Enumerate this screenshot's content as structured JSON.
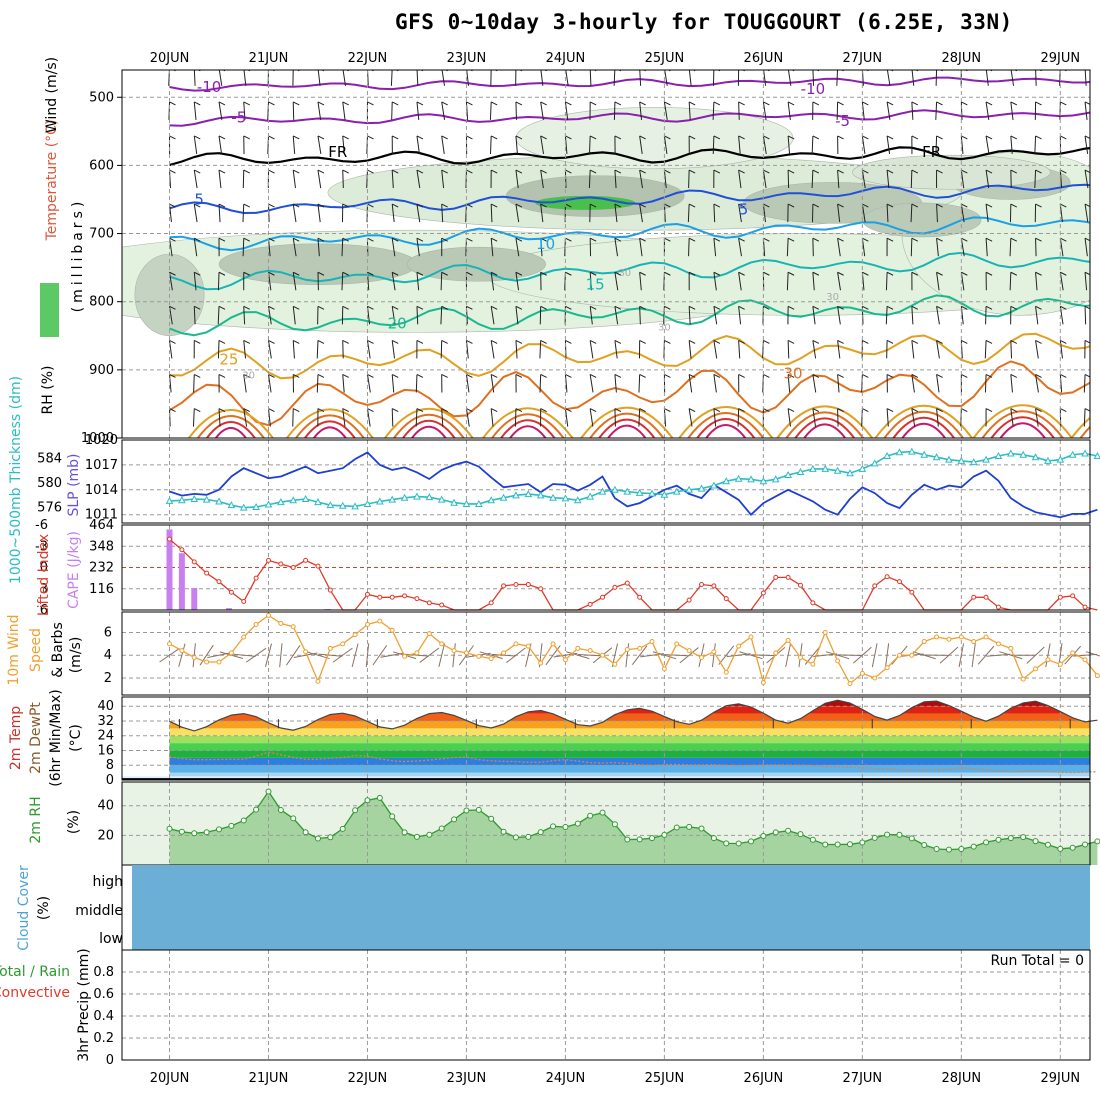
{
  "title": "GFS 0~10day 3-hourly for TOUGGOURT (6.25E, 33N)",
  "dates": [
    "20JUN",
    "21JUN",
    "22JUN",
    "23JUN",
    "24JUN",
    "25JUN",
    "26JUN",
    "27JUN",
    "28JUN",
    "29JUN"
  ],
  "panel_labels": {
    "upper_wind": "Wind (m/s)",
    "upper_temp": "Temperature (°C)",
    "upper_rh": "RH (%)",
    "upper_pres": "(millibars)",
    "thickness": "1000~500mb Thickness (dm)",
    "slp": "SLP (mb)",
    "li": "Lifted Index",
    "cape": "CAPE (J/kg)",
    "wind10_a": "10m Wind",
    "wind10_b": "Speed",
    "wind10_c": "& Barbs",
    "wind10_units": "(m/s)",
    "temp2m_a": "2m Temp",
    "temp2m_b": "2m DewPt",
    "temp2m_c": "(6hr Min/Max)",
    "temp2m_units": "(°C)",
    "rh2m": "2m RH",
    "rh2m_units": "(%)",
    "cloud": "Cloud Cover",
    "cloud_units": "(%)",
    "precip_a": "Total / Rain",
    "precip_b": "Convective",
    "precip_c": "3hr Precip (mm)",
    "run_total": "Run Total = 0"
  },
  "cloud_levels": [
    "high",
    "middle",
    "low"
  ],
  "colors": {
    "grid": "#9a9a9a",
    "slp": "#1f3fcf",
    "thickness": "#2cbcc4",
    "li": "#e03a2a",
    "cape": "#c87ff0",
    "wind10": "#f0a030",
    "rh2m": "#2e9a2e",
    "cloud": "#6baed6"
  },
  "chart_data": [
    {
      "type": "area",
      "name": "upper air cross-section",
      "y_ticks": [
        "500",
        "600",
        "700",
        "800",
        "900",
        "1000"
      ],
      "ylim": [
        1000,
        460
      ],
      "isotherm_labels": [
        "-10",
        "-5",
        "FR",
        "5",
        "10",
        "15",
        "20",
        "25",
        "30",
        "-10",
        "-5",
        "FR",
        "5",
        "30",
        "30",
        "30",
        "30"
      ],
      "isotherm_levels": [
        -10,
        -5,
        0,
        5,
        10,
        15,
        20,
        25,
        30
      ]
    },
    {
      "type": "line",
      "name": "SLP and thickness",
      "thickness_ticks": [
        "584",
        "580",
        "576"
      ],
      "slp_ticks": [
        "1020",
        "1017",
        "1014",
        "1011"
      ],
      "thickness_ylim": [
        573.5,
        587
      ],
      "slp_ylim": [
        1010,
        1020
      ],
      "slp": [
        1013.8,
        1013.3,
        1013.5,
        1013.4,
        1014.0,
        1015.6,
        1016.6,
        1016.0,
        1015.4,
        1015.6,
        1016.2,
        1016.8,
        1016.0,
        1016.3,
        1016.6,
        1017.7,
        1018.5,
        1017.0,
        1016.4,
        1016.7,
        1016.1,
        1015.3,
        1016.4,
        1017.0,
        1017.4,
        1016.8,
        1015.5,
        1014.3,
        1014.5,
        1014.7,
        1013.7,
        1014.7,
        1014.6,
        1013.9,
        1014.6,
        1015.6,
        1013.0,
        1012.0,
        1012.4,
        1013.2,
        1014.0,
        1014.5,
        1013.5,
        1013.0,
        1014.6,
        1013.7,
        1012.8,
        1011.0,
        1012.4,
        1013.2,
        1014.0,
        1013.3,
        1012.6,
        1011.6,
        1011.0,
        1012.9,
        1014.3,
        1013.6,
        1012.4,
        1011.8,
        1013.4,
        1014.6,
        1014.0,
        1014.5,
        1014.3,
        1015.6,
        1016.3,
        1015.1,
        1013.0,
        1012.0,
        1011.3,
        1011.0,
        1010.7,
        1011.1,
        1011.1,
        1011.6
      ],
      "thickness": [
        577.1,
        577.2,
        577.4,
        577.3,
        577.0,
        576.4,
        576.0,
        576.1,
        576.5,
        576.9,
        577.2,
        577.4,
        576.9,
        576.4,
        576.3,
        576.2,
        576.6,
        577.0,
        577.3,
        577.6,
        577.8,
        577.7,
        577.3,
        576.8,
        576.6,
        576.6,
        577.2,
        577.6,
        578.0,
        578.2,
        578.0,
        577.6,
        577.5,
        577.2,
        577.8,
        578.6,
        578.9,
        578.6,
        578.4,
        578.3,
        578.1,
        578.6,
        578.9,
        579.1,
        579.6,
        580.3,
        580.7,
        580.6,
        580.3,
        580.6,
        581.3,
        581.8,
        582.3,
        582.3,
        582.0,
        581.6,
        582.3,
        583.2,
        584.4,
        585.0,
        585.1,
        584.6,
        584.2,
        583.8,
        583.6,
        583.4,
        583.8,
        584.4,
        584.8,
        584.6,
        584.2,
        583.6,
        583.8,
        584.6,
        584.8,
        584.4
      ]
    },
    {
      "type": "bar",
      "name": "Lifted Index and CAPE",
      "li_ticks": [
        "-6",
        "-3",
        "0",
        "3",
        "6"
      ],
      "cape_ticks": [
        "464",
        "348",
        "232",
        "116"
      ],
      "li_ylim": [
        6,
        -6
      ],
      "cape_ylim": [
        0,
        464
      ],
      "cape_bars": [
        {
          "day": 0.0,
          "value": 440
        },
        {
          "day": 0.125,
          "value": 310
        },
        {
          "day": 0.25,
          "value": 120
        },
        {
          "day": 0.6,
          "value": 10
        },
        {
          "day": 1.6,
          "value": 5
        }
      ],
      "li": [
        -4.0,
        -2.5,
        -0.8,
        0.8,
        2.0,
        3.5,
        4.8,
        1.5,
        -1.0,
        -0.5,
        0.0,
        -1.0,
        -0.2,
        3.2,
        6.0,
        6.0,
        3.8,
        4.2,
        4.2,
        4.0,
        4.4,
        5.0,
        5.3,
        6.0,
        6.0,
        6.0,
        5.0,
        2.6,
        2.4,
        2.4,
        3.0,
        6.0,
        6.0,
        6.0,
        5.2,
        4.2,
        2.8,
        2.2,
        4.2,
        6.0,
        6.0,
        6.0,
        4.6,
        2.4,
        2.6,
        4.4,
        6.0,
        6.0,
        3.6,
        1.4,
        1.4,
        2.5,
        5.0,
        6.0,
        6.0,
        6.0,
        6.0,
        2.6,
        1.3,
        2.0,
        3.5,
        6.0,
        6.0,
        6.0,
        6.0,
        4.2,
        4.2,
        5.6,
        6.0,
        6.0,
        6.0,
        6.0,
        4.2,
        4.0,
        5.6,
        6.0
      ]
    },
    {
      "type": "line",
      "name": "10m wind speed",
      "y_ticks": [
        "2",
        "4",
        "6"
      ],
      "ylim": [
        0.5,
        7.8
      ],
      "values": [
        5.0,
        4.4,
        3.8,
        3.4,
        3.4,
        4.2,
        5.6,
        6.7,
        7.5,
        6.8,
        6.5,
        4.3,
        1.7,
        4.6,
        5.0,
        5.8,
        6.7,
        7.0,
        6.2,
        3.9,
        4.2,
        5.9,
        5.0,
        4.4,
        4.2,
        3.9,
        3.7,
        4.2,
        5.0,
        4.8,
        3.3,
        5.0,
        3.6,
        4.6,
        4.4,
        4.0,
        3.2,
        4.5,
        4.6,
        5.2,
        2.8,
        5.0,
        4.4,
        3.8,
        4.3,
        2.5,
        4.8,
        5.6,
        1.6,
        4.2,
        5.3,
        3.8,
        3.2,
        6.0,
        3.5,
        1.5,
        2.4,
        2.0,
        2.9,
        4.0,
        4.0,
        5.2,
        5.6,
        5.4,
        5.6,
        5.2,
        5.6,
        5.0,
        4.6,
        1.9,
        2.8,
        3.6,
        3.2,
        4.2,
        3.6,
        2.2
      ]
    },
    {
      "type": "area",
      "name": "2m temperature and dewpoint",
      "y_ticks": [
        "40",
        "32",
        "24",
        "16",
        "8",
        "0"
      ],
      "ylim": [
        0,
        45
      ],
      "temp": [
        31.8,
        28.6,
        26.6,
        28.9,
        32.6,
        35.2,
        36.0,
        34.3,
        31.0,
        28.2,
        27.0,
        29.0,
        32.8,
        35.5,
        36.2,
        34.7,
        31.7,
        28.8,
        27.7,
        29.7,
        33.4,
        36.0,
        36.6,
        35.0,
        32.3,
        29.5,
        28.2,
        30.3,
        34.3,
        37.0,
        37.7,
        35.9,
        32.9,
        30.0,
        29.3,
        31.3,
        35.4,
        38.0,
        38.9,
        37.3,
        34.4,
        31.6,
        30.2,
        32.4,
        36.7,
        40.3,
        41.3,
        39.5,
        36.2,
        32.5,
        30.8,
        33.3,
        37.5,
        41.6,
        43.2,
        41.7,
        38.3,
        34.5,
        32.5,
        34.9,
        39.2,
        42.4,
        42.8,
        40.4,
        37.3,
        34.1,
        31.9,
        34.6,
        38.9,
        41.8,
        42.7,
        40.4,
        37.1,
        33.7,
        31.5,
        32.4
      ],
      "dewpt": [
        12.5,
        11.6,
        11.0,
        11.0,
        11.1,
        11.3,
        11.2,
        13.0,
        15.0,
        13.7,
        12.3,
        11.3,
        11.3,
        11.8,
        12.2,
        13.3,
        12.9,
        11.5,
        10.4,
        10.0,
        10.3,
        10.8,
        11.5,
        12.2,
        12.4,
        11.0,
        10.4,
        10.1,
        10.0,
        9.6,
        9.6,
        10.5,
        11.0,
        10.3,
        9.4,
        9.2,
        9.4,
        9.0,
        8.2,
        8.0,
        8.3,
        8.5,
        8.2,
        8.2,
        8.3,
        8.0,
        7.8,
        7.9,
        8.2,
        8.2,
        8.2,
        8.0,
        7.8,
        7.4,
        7.1,
        6.9,
        6.6,
        6.3,
        6.0,
        5.6,
        5.4,
        5.4,
        5.6,
        5.7,
        6.6,
        6.1,
        5.6,
        4.9,
        4.4,
        4.6,
        4.8,
        4.6,
        4.2,
        4.0,
        4.3,
        4.5
      ]
    },
    {
      "type": "area",
      "name": "2m relative humidity",
      "y_ticks": [
        "40",
        "20"
      ],
      "ylim": [
        0,
        56
      ],
      "values": [
        24.5,
        22.4,
        21.4,
        22.1,
        24.0,
        26.4,
        30.0,
        37.4,
        49.6,
        37.1,
        31.5,
        22.1,
        17.9,
        18.7,
        24.4,
        36.9,
        43.7,
        45.3,
        32.8,
        22.0,
        19.0,
        20.4,
        24.6,
        30.8,
        36.8,
        37.2,
        31.2,
        22.4,
        18.6,
        19.0,
        22.2,
        26.1,
        25.6,
        27.9,
        33.2,
        35.3,
        27.5,
        17.2,
        17.3,
        18.1,
        20.3,
        25.3,
        25.7,
        24.6,
        18.1,
        14.6,
        14.5,
        15.9,
        19.6,
        22.0,
        23.1,
        20.8,
        17.0,
        13.8,
        13.8,
        14.0,
        15.2,
        18.3,
        20.5,
        20.4,
        18.0,
        13.5,
        10.8,
        10.4,
        10.8,
        12.4,
        15.3,
        17.0,
        18.1,
        18.8,
        16.1,
        13.7,
        10.9,
        11.6,
        13.8,
        15.9
      ]
    },
    {
      "type": "heatmap",
      "name": "Cloud Cover",
      "levels": [
        "high",
        "middle",
        "low"
      ],
      "values": [
        0,
        0,
        0
      ]
    },
    {
      "type": "line",
      "name": "3hr Precip",
      "y_ticks": [
        "0.8",
        "0.6",
        "0.4",
        "0.2",
        "0"
      ],
      "ylim": [
        0,
        1.0
      ],
      "values": []
    }
  ]
}
